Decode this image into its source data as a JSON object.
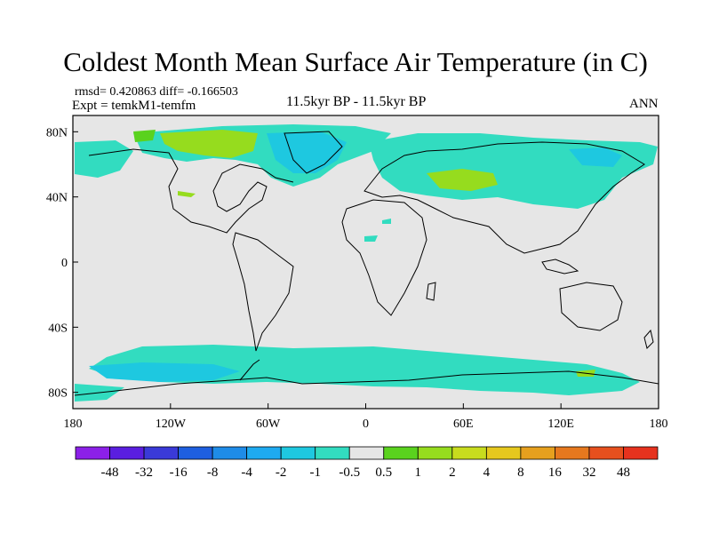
{
  "title": "Coldest Month Mean Surface Air Temperature (in C)",
  "stats_line": "rmsd= 0.420863 diff= -0.166503",
  "expt_line": "Expt = temkM1-temfm",
  "period": "11.5kyr BP - 11.5kyr BP",
  "season": "ANN",
  "lat_labels": [
    "80N",
    "40N",
    "0",
    "40S",
    "80S"
  ],
  "lat_values": [
    80,
    40,
    0,
    -40,
    -80
  ],
  "lon_labels": [
    "180",
    "120W",
    "60W",
    "0",
    "60E",
    "120E",
    "180"
  ],
  "lon_values": [
    -180,
    -120,
    -60,
    0,
    60,
    120,
    180
  ],
  "colorbar": {
    "labels": [
      "-48",
      "-32",
      "-16",
      "-8",
      "-4",
      "-2",
      "-1",
      "-0.5",
      "0.5",
      "1",
      "2",
      "4",
      "8",
      "16",
      "32",
      "48"
    ],
    "colors": [
      "#8c20e8",
      "#5a1ee0",
      "#3a3ad8",
      "#1e5fe0",
      "#1e8ce8",
      "#1eaaf0",
      "#1ec8e0",
      "#32dcc0",
      "#e6e6e6",
      "#5ad21e",
      "#96dc1e",
      "#c8dc1e",
      "#e6c81e",
      "#e6a01e",
      "#e6781e",
      "#e6501e",
      "#e6321e"
    ]
  },
  "map_colors": {
    "background": "#e6e6e6",
    "cold_light": "#32dcc0",
    "cold_medium": "#1ec8e0",
    "warm_light": "#96dc1e"
  }
}
